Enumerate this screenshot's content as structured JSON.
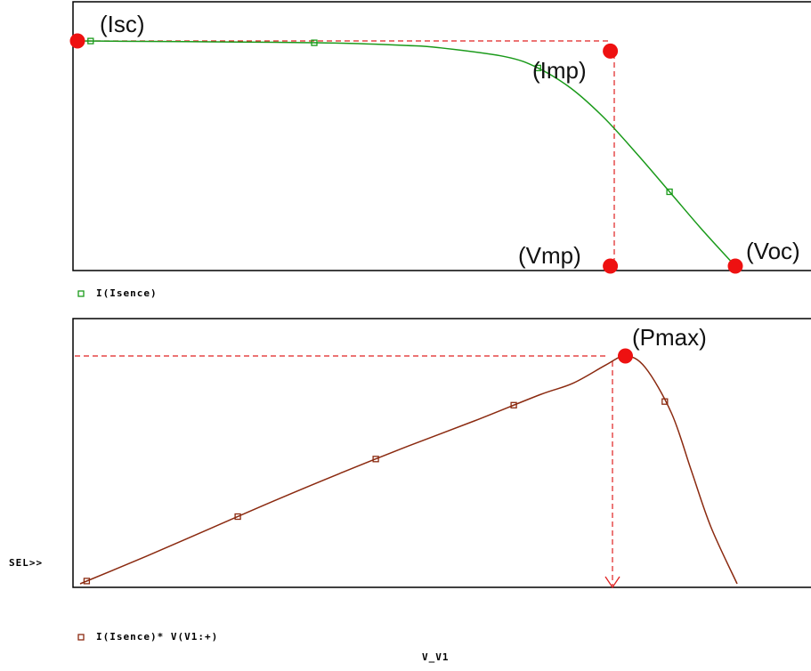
{
  "chart_data": [
    {
      "type": "line",
      "title": "",
      "xlabel": "",
      "ylabel": "",
      "grid": false,
      "legend_position": "bottom-left",
      "series": [
        {
          "name": "I(Isence)",
          "color": "#1a9a1a",
          "marker": "square",
          "x": [
            0.0,
            0.05,
            0.1,
            0.2,
            0.3,
            0.4,
            0.5,
            0.55,
            0.65,
            0.7,
            0.75,
            0.8,
            0.85,
            0.9,
            0.95,
            1.0
          ],
          "y": [
            1.0,
            0.999,
            0.998,
            0.996,
            0.994,
            0.99,
            0.98,
            0.97,
            0.93,
            0.88,
            0.79,
            0.66,
            0.5,
            0.33,
            0.16,
            0.0
          ],
          "marker_x": [
            0.02,
            0.36,
            0.7,
            0.9
          ]
        }
      ],
      "annotations": [
        {
          "label": "(Isc)",
          "x": 0.0,
          "y": 1.0
        },
        {
          "label": "(Imp)",
          "x": 0.81,
          "y": 0.955
        },
        {
          "label": "(Vmp)",
          "x": 0.81,
          "y": 0.0
        },
        {
          "label": "(Voc)",
          "x": 1.0,
          "y": 0.0
        }
      ]
    },
    {
      "type": "line",
      "title": "",
      "xlabel": "V_V1",
      "ylabel": "",
      "grid": false,
      "legend_position": "bottom-left",
      "series": [
        {
          "name": "I(Isence)* V(V1:+)",
          "color": "#8b2a10",
          "marker": "square",
          "x": [
            0.0,
            0.1,
            0.2,
            0.3,
            0.4,
            0.5,
            0.6,
            0.7,
            0.75,
            0.8,
            0.83,
            0.86,
            0.9,
            0.93,
            0.96,
            1.0
          ],
          "y": [
            0.0,
            0.12,
            0.245,
            0.37,
            0.49,
            0.605,
            0.715,
            0.83,
            0.88,
            0.96,
            1.0,
            0.95,
            0.75,
            0.5,
            0.25,
            0.0
          ],
          "marker_x": [
            0.01,
            0.24,
            0.45,
            0.66,
            0.89
          ]
        }
      ],
      "annotations": [
        {
          "label": "(Pmax)",
          "x": 0.83,
          "y": 1.0
        }
      ],
      "cursor_label": "SEL>>"
    }
  ]
}
